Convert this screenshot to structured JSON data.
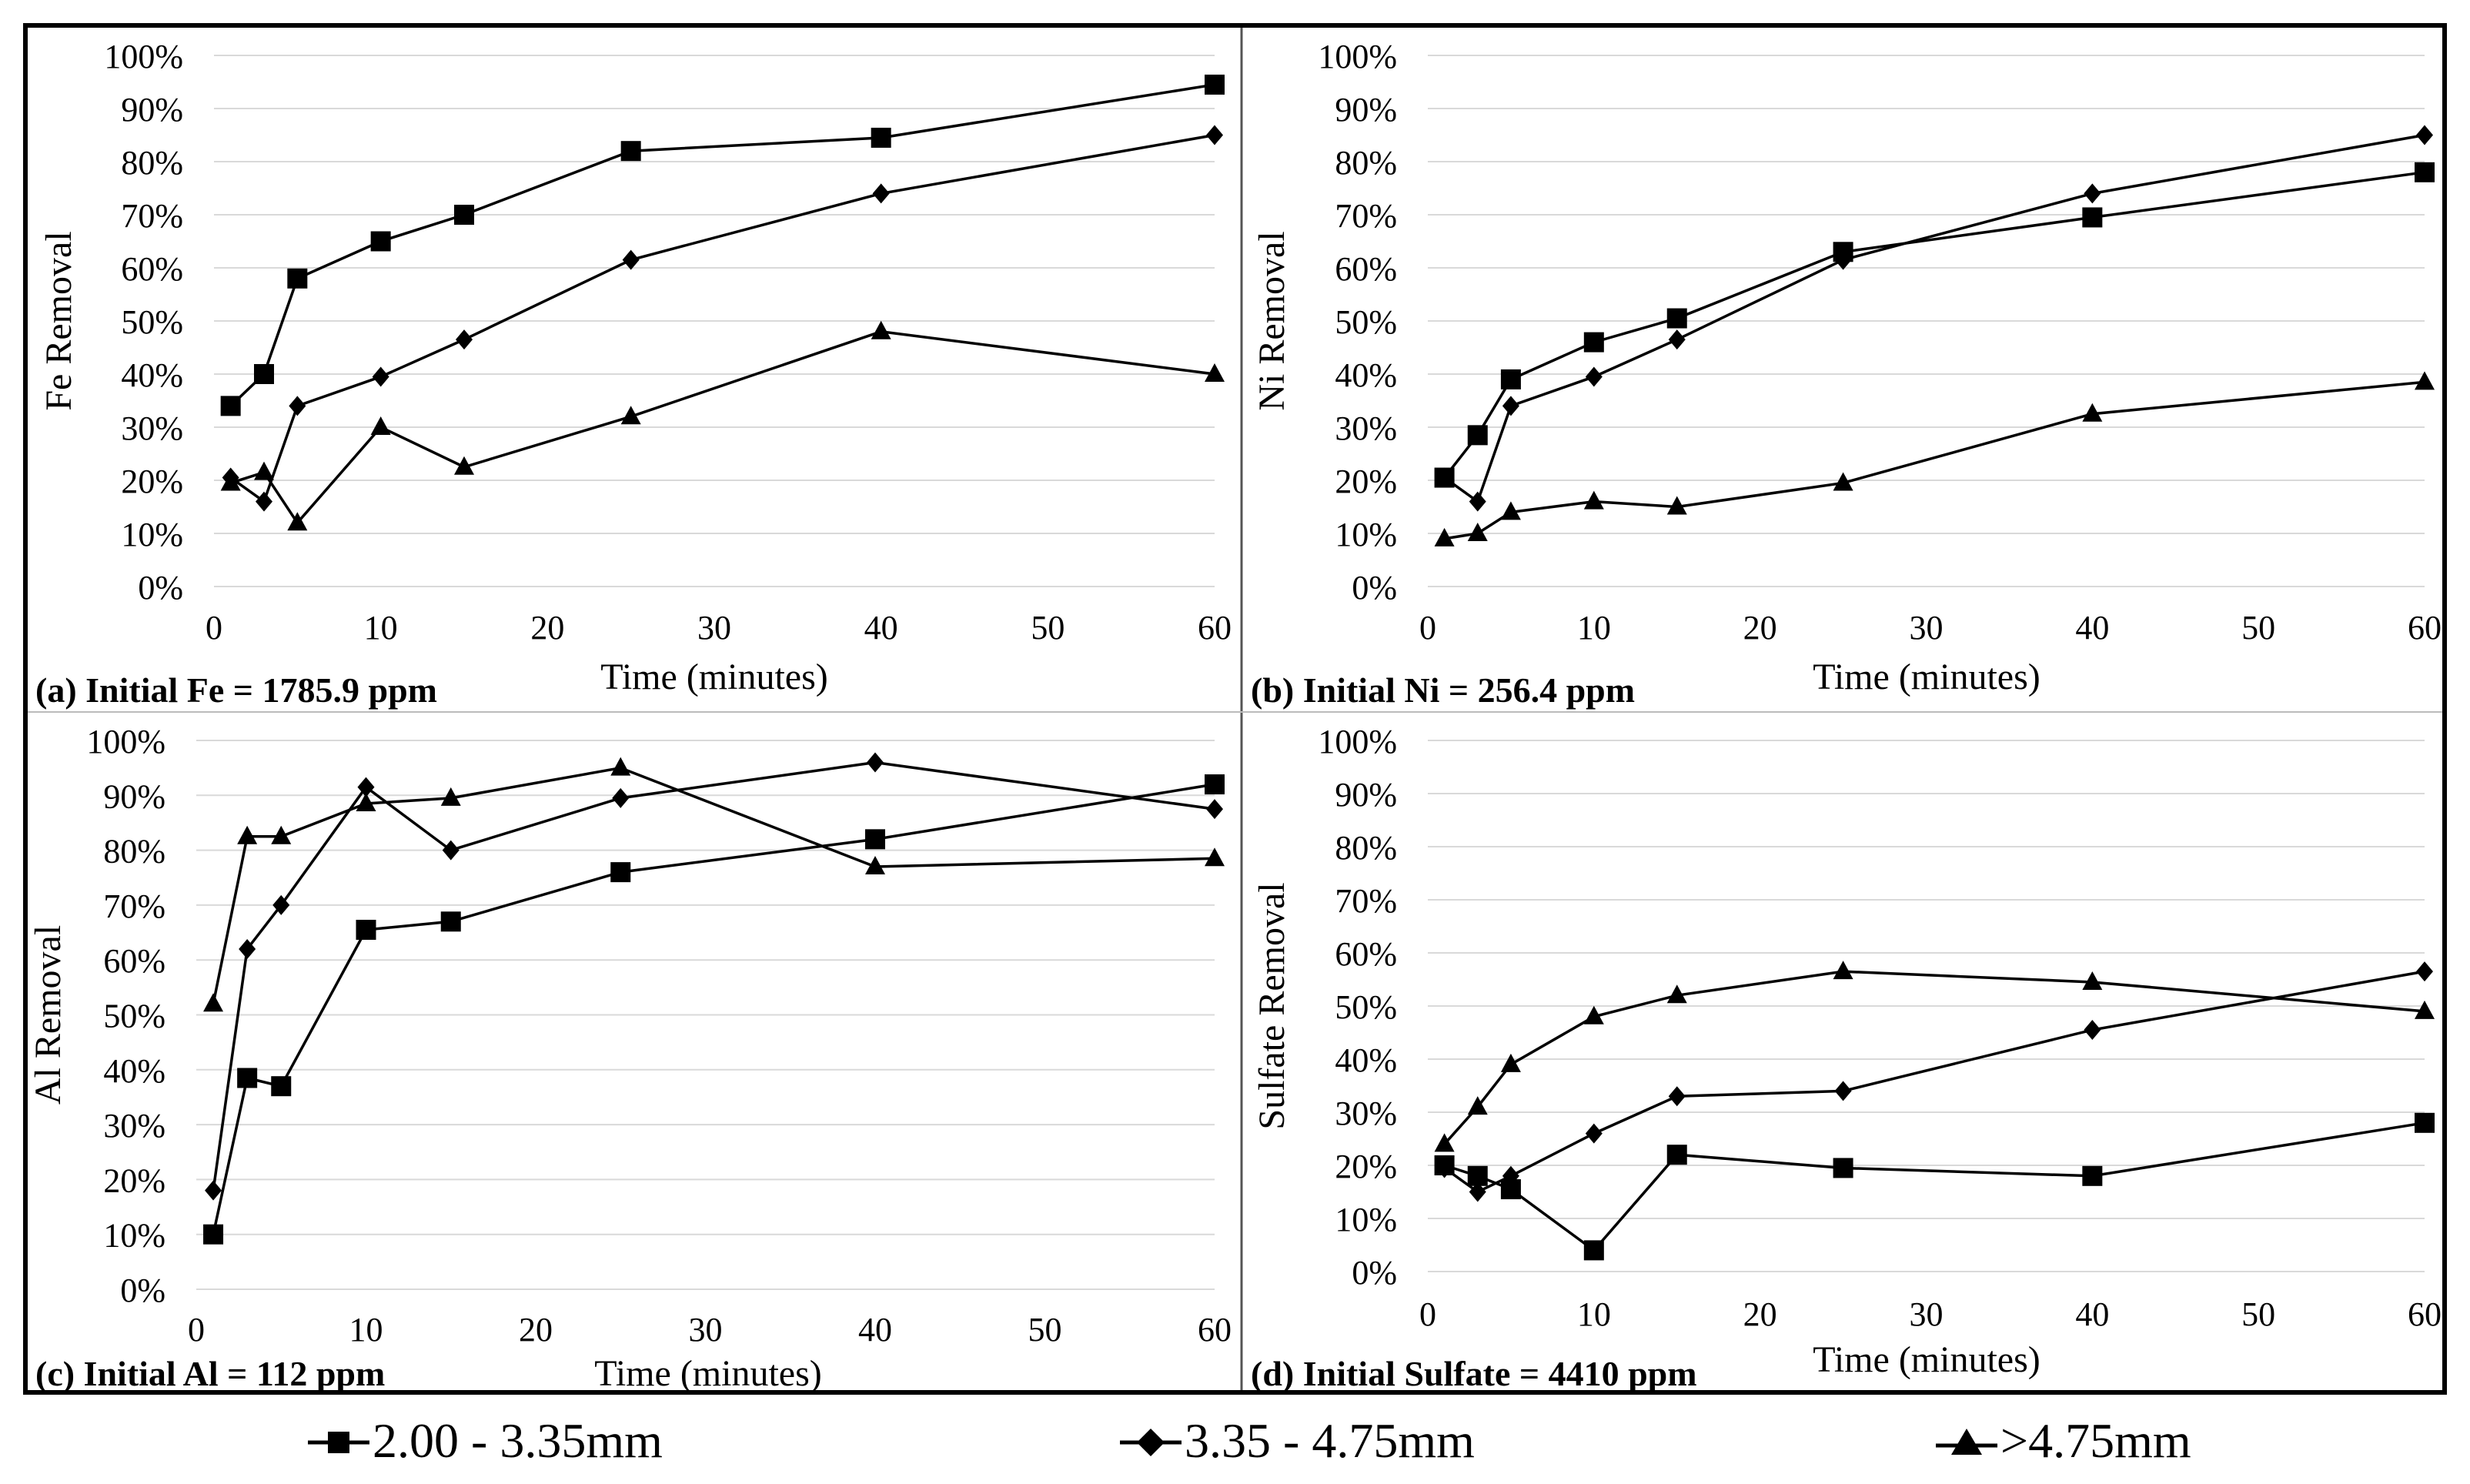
{
  "colors": {
    "line": "#000000",
    "grid": "#d9d9d9",
    "background": "#ffffff"
  },
  "legend": [
    {
      "label": "2.00 - 3.35mm",
      "marker": "square"
    },
    {
      "label": "3.35 - 4.75mm",
      "marker": "diamond"
    },
    {
      "label": ">4.75mm",
      "marker": "triangle"
    }
  ],
  "chart_data": [
    {
      "type": "line",
      "panel": "a",
      "caption": "(a) Initial Fe = 1785.9 ppm",
      "xlabel": "Time (minutes)",
      "ylabel": "Fe Removal",
      "xlim": [
        0,
        60
      ],
      "ylim": [
        0,
        100
      ],
      "xticks": [
        0,
        10,
        20,
        30,
        40,
        50,
        60
      ],
      "yticks": [
        "0%",
        "10%",
        "20%",
        "30%",
        "40%",
        "50%",
        "60%",
        "70%",
        "80%",
        "90%",
        "100%"
      ],
      "x": [
        1,
        3,
        5,
        10,
        15,
        25,
        40,
        60
      ],
      "series": [
        {
          "name": "2.00 - 3.35mm",
          "marker": "square",
          "values": [
            34,
            40,
            58,
            65,
            70,
            82,
            84.5,
            94.5
          ]
        },
        {
          "name": "3.35 - 4.75mm",
          "marker": "diamond",
          "values": [
            20.5,
            16,
            34,
            39.5,
            46.5,
            61.5,
            74,
            85
          ]
        },
        {
          "name": ">4.75mm",
          "marker": "triangle",
          "values": [
            19.5,
            21.5,
            12,
            30,
            22.5,
            32,
            48,
            40
          ]
        }
      ]
    },
    {
      "type": "line",
      "panel": "b",
      "caption": "(b) Initial Ni = 256.4 ppm",
      "xlabel": "Time (minutes)",
      "ylabel": "Ni Removal",
      "xlim": [
        0,
        60
      ],
      "ylim": [
        0,
        100
      ],
      "xticks": [
        0,
        10,
        20,
        30,
        40,
        50,
        60
      ],
      "yticks": [
        "0%",
        "10%",
        "20%",
        "30%",
        "40%",
        "50%",
        "60%",
        "70%",
        "80%",
        "90%",
        "100%"
      ],
      "x": [
        1,
        3,
        5,
        10,
        15,
        25,
        40,
        60
      ],
      "series": [
        {
          "name": "2.00 - 3.35mm",
          "marker": "square",
          "values": [
            20.5,
            28.5,
            39,
            46,
            50.5,
            63,
            69.5,
            78
          ]
        },
        {
          "name": "3.35 - 4.75mm",
          "marker": "diamond",
          "values": [
            20.5,
            16,
            34,
            39.5,
            46.5,
            61.5,
            74,
            85
          ]
        },
        {
          "name": ">4.75mm",
          "marker": "triangle",
          "values": [
            9,
            10,
            14,
            16,
            15,
            19.5,
            32.5,
            38.5
          ]
        }
      ]
    },
    {
      "type": "line",
      "panel": "c",
      "caption": "(c) Initial Al = 112 ppm",
      "xlabel": "Time (minutes)",
      "ylabel": "Al Removal",
      "xlim": [
        0,
        60
      ],
      "ylim": [
        0,
        100
      ],
      "xticks": [
        0,
        10,
        20,
        30,
        40,
        50,
        60
      ],
      "yticks": [
        "0%",
        "10%",
        "20%",
        "30%",
        "40%",
        "50%",
        "60%",
        "70%",
        "80%",
        "90%",
        "100%"
      ],
      "x": [
        1,
        3,
        5,
        10,
        15,
        25,
        40,
        60
      ],
      "series": [
        {
          "name": "2.00 - 3.35mm",
          "marker": "square",
          "values": [
            10,
            38.5,
            37,
            65.5,
            67,
            76,
            82,
            92
          ]
        },
        {
          "name": "3.35 - 4.75mm",
          "marker": "diamond",
          "values": [
            18,
            62,
            70,
            91.5,
            80,
            89.5,
            96,
            87.5
          ]
        },
        {
          "name": ">4.75mm",
          "marker": "triangle",
          "values": [
            52,
            82.5,
            82.5,
            88.5,
            89.5,
            95,
            77,
            78.5
          ]
        }
      ]
    },
    {
      "type": "line",
      "panel": "d",
      "caption": "(d) Initial Sulfate = 4410 ppm",
      "xlabel": "Time (minutes)",
      "ylabel": "Sulfate Removal",
      "xlim": [
        0,
        60
      ],
      "ylim": [
        0,
        100
      ],
      "xticks": [
        0,
        10,
        20,
        30,
        40,
        50,
        60
      ],
      "yticks": [
        "0%",
        "10%",
        "20%",
        "30%",
        "40%",
        "50%",
        "60%",
        "70%",
        "80%",
        "90%",
        "100%"
      ],
      "x": [
        1,
        3,
        5,
        10,
        15,
        25,
        40,
        60
      ],
      "series": [
        {
          "name": "2.00 - 3.35mm",
          "marker": "square",
          "values": [
            20,
            18,
            15.5,
            4,
            22,
            19.5,
            18,
            28
          ]
        },
        {
          "name": "3.35 - 4.75mm",
          "marker": "diamond",
          "values": [
            19.5,
            15,
            18,
            26,
            33,
            34,
            45.5,
            56.5
          ]
        },
        {
          "name": ">4.75mm",
          "marker": "triangle",
          "values": [
            24,
            31,
            39,
            48,
            52,
            56.5,
            54.5,
            49
          ]
        }
      ]
    }
  ]
}
